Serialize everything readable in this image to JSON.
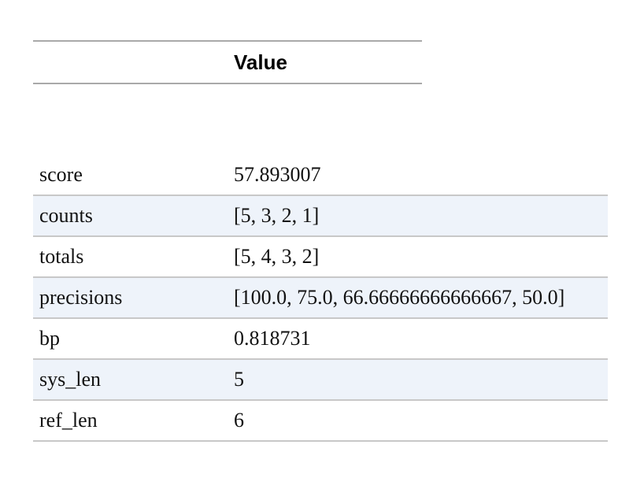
{
  "table": {
    "header": "Value",
    "rows": [
      {
        "key": "score",
        "value": "57.893007"
      },
      {
        "key": "counts",
        "value": "[5, 3, 2, 1]"
      },
      {
        "key": "totals",
        "value": "[5, 4, 3, 2]"
      },
      {
        "key": "precisions",
        "value": "[100.0, 75.0, 66.66666666666667, 50.0]"
      },
      {
        "key": "bp",
        "value": "0.818731"
      },
      {
        "key": "sys_len",
        "value": "5"
      },
      {
        "key": "ref_len",
        "value": "6"
      }
    ]
  }
}
